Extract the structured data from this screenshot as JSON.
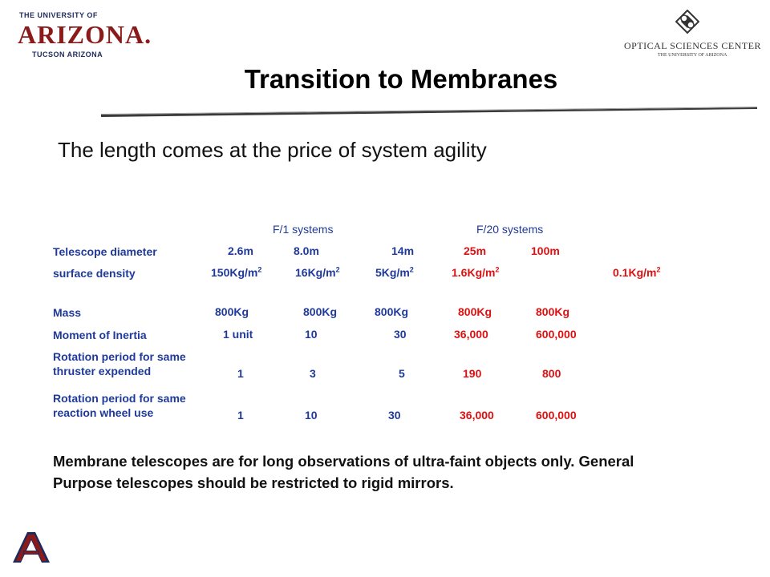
{
  "header": {
    "ua_logo": {
      "line1": "The University of",
      "line2": "Arizona.",
      "line3": "Tucson Arizona"
    },
    "osc_logo": {
      "name": "Optical Sciences Center",
      "sub": "The University of Arizona"
    }
  },
  "slide": {
    "title": "Transition to Membranes",
    "subtitle": "The length comes at the price of system agility",
    "column_headers": {
      "f1": "F/1 systems",
      "f20": "F/20 systems"
    },
    "rows": {
      "telescope_diameter": {
        "label": "Telescope diameter",
        "values": [
          "2.6m",
          "8.0m",
          "14m",
          "25m",
          "100m"
        ]
      },
      "surface_density": {
        "label": "surface density",
        "values": [
          "150Kg/m",
          "16Kg/m",
          "5Kg/m",
          "1.6Kg/m",
          "0.1Kg/m"
        ],
        "exponent": "2"
      },
      "mass": {
        "label": "Mass",
        "values": [
          "800Kg",
          "800Kg",
          "800Kg",
          "800Kg",
          "800Kg"
        ]
      },
      "moment_of_inertia": {
        "label": "Moment of Inertia",
        "values": [
          "1 unit",
          "10",
          "30",
          "36,000",
          "600,000"
        ]
      },
      "rotation_thruster": {
        "label_line1": "Rotation period for same",
        "label_line2": "thruster expended",
        "values": [
          "1",
          "3",
          "5",
          "190",
          "800"
        ]
      },
      "rotation_wheel": {
        "label_line1": "Rotation period for same",
        "label_line2": "reaction wheel use",
        "values": [
          "1",
          "10",
          "30",
          "36,000",
          "600,000"
        ]
      }
    },
    "conclusion": "Membrane telescopes are for long observations of ultra-faint objects only. General Purpose telescopes should be restricted to rigid mirrors."
  },
  "colors": {
    "blue_text": "#1f3a9a",
    "red_text": "#dd1111",
    "ua_red": "#8b1a1a",
    "ua_navy": "#1d2a5c"
  },
  "icons": {
    "ua_footer": "arizona-a-logo-icon",
    "osc_emblem": "optical-sciences-emblem-icon"
  }
}
